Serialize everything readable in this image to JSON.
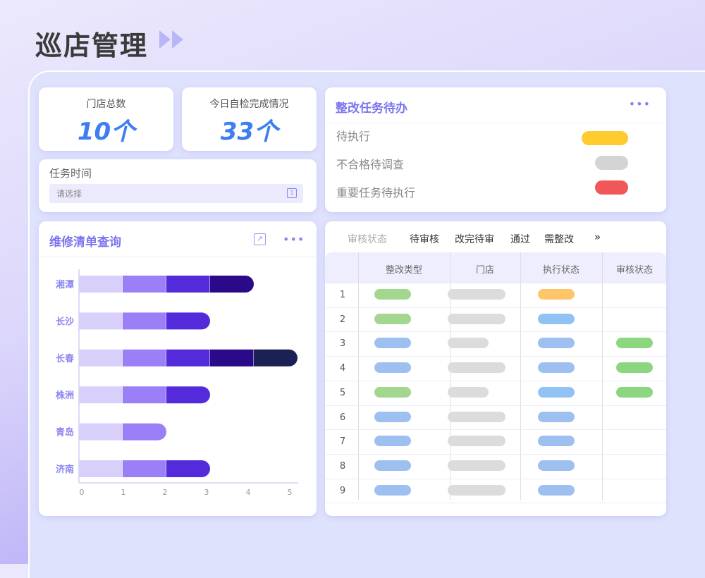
{
  "header": {
    "title": "巡店管理"
  },
  "stats": [
    {
      "label": "门店总数",
      "value": "10个"
    },
    {
      "label": "今日自检完成情况",
      "value": "33个"
    }
  ],
  "task_time": {
    "label": "任务时间",
    "placeholder": "请选择"
  },
  "todo": {
    "title": "整改任务待办",
    "items": [
      {
        "label": "待执行",
        "color": "#ffcb2e"
      },
      {
        "label": "不合格待调查",
        "color": "#d4d4d4"
      },
      {
        "label": "重要任务待执行",
        "color": "#f25757"
      }
    ]
  },
  "repair": {
    "title": "维修清单查询"
  },
  "chart_data": {
    "type": "bar",
    "orientation": "horizontal",
    "stacked": true,
    "categories": [
      "湘潭",
      "长沙",
      "长春",
      "株洲",
      "青岛",
      "济南"
    ],
    "segment_colors": [
      "#d8cffa",
      "#9b7ff6",
      "#542bda",
      "#2a0a89",
      "#1b2155"
    ],
    "values": [
      4,
      3,
      5,
      3,
      2,
      3
    ],
    "xticks": [
      "0",
      "1",
      "2",
      "3",
      "4",
      "5"
    ],
    "xlim": [
      0,
      5
    ],
    "grid": false
  },
  "review": {
    "filter_label": "审核状态",
    "filters": [
      "待审核",
      "改完待审",
      "通过",
      "需整改"
    ],
    "more": "»",
    "columns": [
      "整改类型",
      "门店",
      "执行状态",
      "审核状态"
    ],
    "rows": [
      {
        "idx": "1",
        "type": "#a3d68f",
        "store": "long",
        "exec": "#fdc66a",
        "review": ""
      },
      {
        "idx": "2",
        "type": "#a3d68f",
        "store": "long",
        "exec": "#92c2f4",
        "review": ""
      },
      {
        "idx": "3",
        "type": "#9ec0f0",
        "store": "short",
        "exec": "#9ec0f0",
        "review": "#8cd67f"
      },
      {
        "idx": "4",
        "type": "#9ec0f0",
        "store": "long",
        "exec": "#9ec0f0",
        "review": "#8cd67f"
      },
      {
        "idx": "5",
        "type": "#a3d68f",
        "store": "short",
        "exec": "#92c2f4",
        "review": "#8cd67f"
      },
      {
        "idx": "6",
        "type": "#9ec0f0",
        "store": "long",
        "exec": "#9ec0f0",
        "review": ""
      },
      {
        "idx": "7",
        "type": "#9ec0f0",
        "store": "long",
        "exec": "#9ec0f0",
        "review": ""
      },
      {
        "idx": "8",
        "type": "#9ec0f0",
        "store": "long",
        "exec": "#9ec0f0",
        "review": ""
      },
      {
        "idx": "9",
        "type": "#9ec0f0",
        "store": "long",
        "exec": "#9ec0f0",
        "review": ""
      }
    ]
  }
}
